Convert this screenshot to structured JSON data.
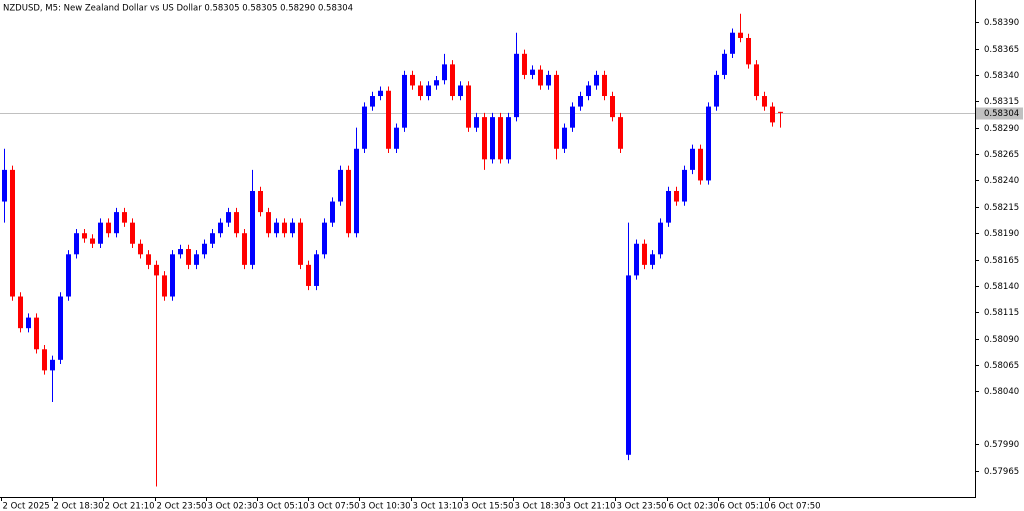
{
  "chart_data": {
    "type": "candlestick",
    "title": "NZDUSD, M5:  New Zealand Dollar vs US Dollar  0.58305 0.58305 0.58290 0.58304",
    "up_color": "#0000ff",
    "down_color": "#ff0000",
    "current_price": 0.58304,
    "xlim": [
      0,
      121.875
    ],
    "ylim": [
      0.5794,
      0.58411
    ],
    "xticks": [
      {
        "value": 0,
        "label": "2 Oct 2025"
      },
      {
        "value": 6.4,
        "label": "2 Oct 18:30"
      },
      {
        "value": 12.8,
        "label": "2 Oct 21:10"
      },
      {
        "value": 19.2,
        "label": "2 Oct 23:50"
      },
      {
        "value": 25.6,
        "label": "3 Oct 02:30"
      },
      {
        "value": 32,
        "label": "3 Oct 05:10"
      },
      {
        "value": 38.4,
        "label": "3 Oct 07:50"
      },
      {
        "value": 44.8,
        "label": "3 Oct 10:30"
      },
      {
        "value": 51.2,
        "label": "3 Oct 13:10"
      },
      {
        "value": 57.6,
        "label": "3 Oct 15:50"
      },
      {
        "value": 64,
        "label": "3 Oct 18:30"
      },
      {
        "value": 70.4,
        "label": "3 Oct 21:10"
      },
      {
        "value": 76.8,
        "label": "3 Oct 23:50"
      },
      {
        "value": 83.2,
        "label": "6 Oct 02:30"
      },
      {
        "value": 89.6,
        "label": "6 Oct 05:10"
      },
      {
        "value": 96,
        "label": "6 Oct 07:50"
      }
    ],
    "yticks": [
      {
        "value": 0.5839,
        "label": "0.58390"
      },
      0.58365,
      {
        "value": 0.5834,
        "label": "0.58340"
      },
      0.58315,
      {
        "value": 0.5829,
        "label": "0.58290"
      },
      0.58265,
      {
        "value": 0.5824,
        "label": "0.58240"
      },
      0.58215,
      {
        "value": 0.5819,
        "label": "0.58190"
      },
      0.58165,
      {
        "value": 0.5814,
        "label": "0.58140"
      },
      0.58115,
      {
        "value": 0.5809,
        "label": "0.58090"
      },
      0.58065,
      {
        "value": 0.5804,
        "label": "0.58040"
      },
      {
        "value": 0.5799,
        "label": "0.57990"
      },
      0.57965
    ],
    "ohlc": [
      [
        0.5822,
        0.5827,
        0.582,
        0.5825
      ],
      [
        0.5825,
        0.58254,
        0.58126,
        0.5813
      ],
      [
        0.5813,
        0.58134,
        0.58096,
        0.581
      ],
      [
        0.581,
        0.58114,
        0.58096,
        0.5811
      ],
      [
        0.5811,
        0.58114,
        0.58076,
        0.5808
      ],
      [
        0.5808,
        0.58084,
        0.58056,
        0.5806
      ],
      [
        0.5806,
        0.58074,
        0.5803,
        0.5807
      ],
      [
        0.5807,
        0.58134,
        0.58066,
        0.5813
      ],
      [
        0.5813,
        0.58174,
        0.58126,
        0.5817
      ],
      [
        0.5817,
        0.58194,
        0.58166,
        0.5819
      ],
      [
        0.5819,
        0.58194,
        0.58181,
        0.58185
      ],
      [
        0.58185,
        0.58189,
        0.58176,
        0.5818
      ],
      [
        0.5818,
        0.58204,
        0.58176,
        0.582
      ],
      [
        0.582,
        0.58204,
        0.58186,
        0.5819
      ],
      [
        0.5819,
        0.58214,
        0.58186,
        0.5821
      ],
      [
        0.5821,
        0.58214,
        0.58196,
        0.582
      ],
      [
        0.582,
        0.58204,
        0.58176,
        0.5818
      ],
      [
        0.5818,
        0.58184,
        0.58166,
        0.5817
      ],
      [
        0.5817,
        0.58174,
        0.58156,
        0.5816
      ],
      [
        0.5816,
        0.58164,
        0.5795,
        0.5815
      ],
      [
        0.5815,
        0.58154,
        0.58126,
        0.5813
      ],
      [
        0.5813,
        0.58174,
        0.58126,
        0.5817
      ],
      [
        0.5817,
        0.58179,
        0.58166,
        0.58175
      ],
      [
        0.58175,
        0.58179,
        0.58156,
        0.5816
      ],
      [
        0.5816,
        0.58174,
        0.58156,
        0.5817
      ],
      [
        0.5817,
        0.58184,
        0.58166,
        0.5818
      ],
      [
        0.5818,
        0.58194,
        0.58176,
        0.5819
      ],
      [
        0.5819,
        0.58204,
        0.58186,
        0.582
      ],
      [
        0.582,
        0.58214,
        0.58196,
        0.5821
      ],
      [
        0.5821,
        0.58214,
        0.58186,
        0.5819
      ],
      [
        0.5819,
        0.58194,
        0.58156,
        0.5816
      ],
      [
        0.5816,
        0.5825,
        0.58156,
        0.5823
      ],
      [
        0.5823,
        0.58234,
        0.58206,
        0.5821
      ],
      [
        0.5821,
        0.58214,
        0.58186,
        0.5819
      ],
      [
        0.5819,
        0.58204,
        0.58186,
        0.582
      ],
      [
        0.582,
        0.58204,
        0.58186,
        0.5819
      ],
      [
        0.5819,
        0.58204,
        0.58186,
        0.582
      ],
      [
        0.582,
        0.58204,
        0.58156,
        0.5816
      ],
      [
        0.5816,
        0.58164,
        0.58136,
        0.5814
      ],
      [
        0.5814,
        0.58174,
        0.58136,
        0.5817
      ],
      [
        0.5817,
        0.58204,
        0.58166,
        0.582
      ],
      [
        0.582,
        0.58224,
        0.58196,
        0.5822
      ],
      [
        0.5822,
        0.58254,
        0.58216,
        0.5825
      ],
      [
        0.5825,
        0.58254,
        0.58186,
        0.5819
      ],
      [
        0.5819,
        0.5829,
        0.58186,
        0.5827
      ],
      [
        0.5827,
        0.58314,
        0.58266,
        0.5831
      ],
      [
        0.5831,
        0.58324,
        0.58306,
        0.5832
      ],
      [
        0.5832,
        0.58329,
        0.58316,
        0.58325
      ],
      [
        0.58325,
        0.58329,
        0.58266,
        0.5827
      ],
      [
        0.5827,
        0.58294,
        0.58266,
        0.5829
      ],
      [
        0.5829,
        0.58344,
        0.58286,
        0.5834
      ],
      [
        0.5834,
        0.58344,
        0.58326,
        0.5833
      ],
      [
        0.5833,
        0.58334,
        0.58316,
        0.5832
      ],
      [
        0.5832,
        0.58334,
        0.58316,
        0.5833
      ],
      [
        0.5833,
        0.58339,
        0.58326,
        0.58335
      ],
      [
        0.58335,
        0.5836,
        0.58331,
        0.5835
      ],
      [
        0.5835,
        0.58354,
        0.58316,
        0.5832
      ],
      [
        0.5832,
        0.58334,
        0.58316,
        0.5833
      ],
      [
        0.5833,
        0.58334,
        0.58286,
        0.5829
      ],
      [
        0.5829,
        0.58304,
        0.58286,
        0.583
      ],
      [
        0.583,
        0.58304,
        0.5825,
        0.5826
      ],
      [
        0.5826,
        0.58304,
        0.58256,
        0.583
      ],
      [
        0.583,
        0.58304,
        0.58256,
        0.5826
      ],
      [
        0.5826,
        0.58304,
        0.58256,
        0.583
      ],
      [
        0.583,
        0.5838,
        0.58296,
        0.5836
      ],
      [
        0.5836,
        0.58364,
        0.58336,
        0.5834
      ],
      [
        0.5834,
        0.58349,
        0.58336,
        0.58345
      ],
      [
        0.58345,
        0.58349,
        0.58326,
        0.5833
      ],
      [
        0.5833,
        0.58344,
        0.58326,
        0.5834
      ],
      [
        0.5834,
        0.58344,
        0.5826,
        0.5827
      ],
      [
        0.5827,
        0.58294,
        0.58266,
        0.5829
      ],
      [
        0.5829,
        0.58314,
        0.58286,
        0.5831
      ],
      [
        0.5831,
        0.58324,
        0.58306,
        0.5832
      ],
      [
        0.5832,
        0.58334,
        0.58316,
        0.5833
      ],
      [
        0.5833,
        0.58344,
        0.58326,
        0.5834
      ],
      [
        0.5834,
        0.58344,
        0.58316,
        0.5832
      ],
      [
        0.5832,
        0.58324,
        0.58296,
        0.583
      ],
      [
        0.583,
        0.58304,
        0.58266,
        0.5827
      ],
      [
        0.5798,
        0.582,
        0.57975,
        0.5815
      ],
      [
        0.5815,
        0.58184,
        0.58146,
        0.5818
      ],
      [
        0.5818,
        0.58184,
        0.58156,
        0.5816
      ],
      [
        0.5816,
        0.58174,
        0.58156,
        0.5817
      ],
      [
        0.5817,
        0.58204,
        0.58166,
        0.582
      ],
      [
        0.582,
        0.58234,
        0.58196,
        0.5823
      ],
      [
        0.5823,
        0.58234,
        0.58216,
        0.5822
      ],
      [
        0.5822,
        0.58254,
        0.58216,
        0.5825
      ],
      [
        0.5825,
        0.58274,
        0.58246,
        0.5827
      ],
      [
        0.5827,
        0.58274,
        0.58236,
        0.5824
      ],
      [
        0.5824,
        0.58314,
        0.58236,
        0.5831
      ],
      [
        0.5831,
        0.58344,
        0.58306,
        0.5834
      ],
      [
        0.5834,
        0.58364,
        0.58336,
        0.5836
      ],
      [
        0.5836,
        0.58384,
        0.58356,
        0.5838
      ],
      [
        0.5838,
        0.58398,
        0.58371,
        0.58375
      ],
      [
        0.58375,
        0.58379,
        0.58346,
        0.5835
      ],
      [
        0.5835,
        0.58354,
        0.58316,
        0.5832
      ],
      [
        0.5832,
        0.58324,
        0.58306,
        0.5831
      ],
      [
        0.5831,
        0.58314,
        0.58291,
        0.58295
      ],
      [
        0.58305,
        0.58305,
        0.5829,
        0.58304
      ]
    ]
  }
}
